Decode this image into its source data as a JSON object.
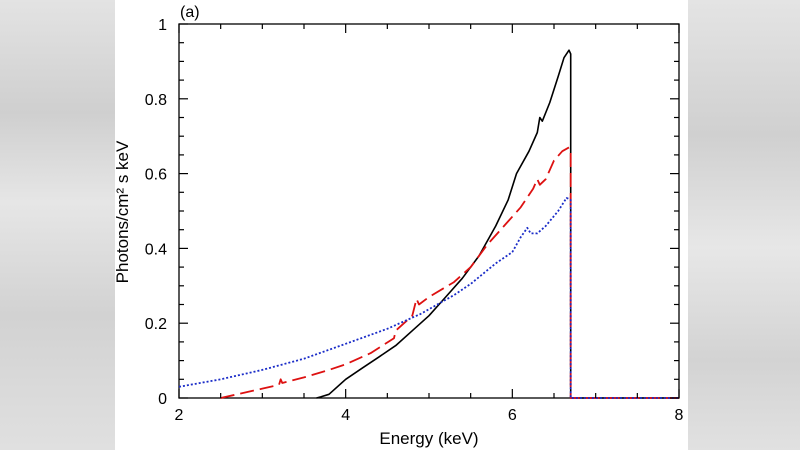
{
  "chart_data": {
    "type": "line",
    "panel_label": "(a)",
    "xlabel": "Energy (keV)",
    "ylabel": "Photons/cm² s keV",
    "xlim": [
      2,
      8
    ],
    "ylim": [
      0,
      1
    ],
    "x_ticks": [
      2,
      4,
      6,
      8
    ],
    "y_ticks": [
      0,
      0.2,
      0.4,
      0.6,
      0.8,
      1
    ],
    "x_tick_labels": [
      "2",
      "4",
      "6",
      "8"
    ],
    "y_tick_labels": [
      "0",
      "0.2",
      "0.4",
      "0.6",
      "0.8",
      "1"
    ],
    "series": [
      {
        "name": "black-solid",
        "color": "#000000",
        "dash": "solid",
        "points": [
          [
            3.65,
            0
          ],
          [
            3.7,
            0.003
          ],
          [
            3.8,
            0.01
          ],
          [
            4.0,
            0.05
          ],
          [
            4.2,
            0.08
          ],
          [
            4.4,
            0.11
          ],
          [
            4.6,
            0.14
          ],
          [
            4.8,
            0.18
          ],
          [
            5.0,
            0.22
          ],
          [
            5.2,
            0.27
          ],
          [
            5.4,
            0.32
          ],
          [
            5.6,
            0.38
          ],
          [
            5.8,
            0.46
          ],
          [
            5.95,
            0.53
          ],
          [
            6.05,
            0.6
          ],
          [
            6.2,
            0.66
          ],
          [
            6.3,
            0.71
          ],
          [
            6.33,
            0.75
          ],
          [
            6.36,
            0.74
          ],
          [
            6.45,
            0.79
          ],
          [
            6.55,
            0.86
          ],
          [
            6.62,
            0.91
          ],
          [
            6.68,
            0.93
          ],
          [
            6.7,
            0.92
          ],
          [
            6.7,
            0.0
          ],
          [
            8.0,
            0.0
          ]
        ]
      },
      {
        "name": "red-dashed",
        "color": "#dd1111",
        "dash": "dashed",
        "points": [
          [
            2.5,
            0
          ],
          [
            2.8,
            0.015
          ],
          [
            3.0,
            0.025
          ],
          [
            3.2,
            0.035
          ],
          [
            3.22,
            0.05
          ],
          [
            3.24,
            0.04
          ],
          [
            3.5,
            0.055
          ],
          [
            3.8,
            0.075
          ],
          [
            4.0,
            0.09
          ],
          [
            4.3,
            0.12
          ],
          [
            4.58,
            0.16
          ],
          [
            4.6,
            0.18
          ],
          [
            4.8,
            0.22
          ],
          [
            4.85,
            0.265
          ],
          [
            4.88,
            0.25
          ],
          [
            5.0,
            0.27
          ],
          [
            5.3,
            0.31
          ],
          [
            5.5,
            0.35
          ],
          [
            5.7,
            0.41
          ],
          [
            5.9,
            0.46
          ],
          [
            6.1,
            0.51
          ],
          [
            6.25,
            0.56
          ],
          [
            6.3,
            0.585
          ],
          [
            6.33,
            0.57
          ],
          [
            6.4,
            0.585
          ],
          [
            6.5,
            0.635
          ],
          [
            6.6,
            0.66
          ],
          [
            6.68,
            0.67
          ],
          [
            6.7,
            0.66
          ],
          [
            6.7,
            0.0
          ],
          [
            8.0,
            0.0
          ]
        ]
      },
      {
        "name": "blue-dotted",
        "color": "#1a2cc8",
        "dash": "dotted",
        "points": [
          [
            2.0,
            0.03
          ],
          [
            2.5,
            0.05
          ],
          [
            3.0,
            0.075
          ],
          [
            3.5,
            0.105
          ],
          [
            4.0,
            0.145
          ],
          [
            4.5,
            0.185
          ],
          [
            4.9,
            0.225
          ],
          [
            5.3,
            0.275
          ],
          [
            5.5,
            0.305
          ],
          [
            5.8,
            0.36
          ],
          [
            6.0,
            0.39
          ],
          [
            6.1,
            0.43
          ],
          [
            6.18,
            0.455
          ],
          [
            6.22,
            0.44
          ],
          [
            6.3,
            0.44
          ],
          [
            6.4,
            0.46
          ],
          [
            6.55,
            0.5
          ],
          [
            6.65,
            0.535
          ],
          [
            6.7,
            0.53
          ],
          [
            6.7,
            0.0
          ],
          [
            8.0,
            0.0
          ]
        ]
      }
    ]
  }
}
